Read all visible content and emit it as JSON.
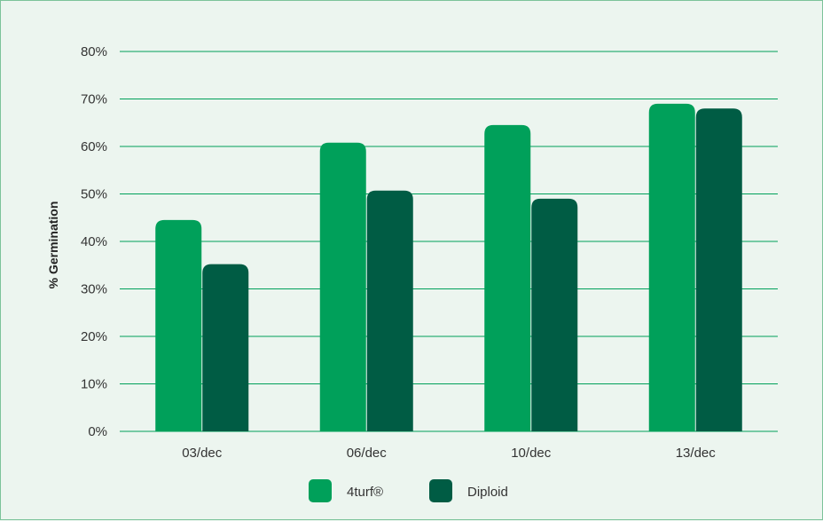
{
  "chart_data": {
    "type": "bar",
    "title": "",
    "xlabel": "",
    "ylabel": "% Germination",
    "ylim": [
      0,
      80
    ],
    "yticks": [
      "0%",
      "10%",
      "20%",
      "30%",
      "40%",
      "50%",
      "60%",
      "70%",
      "80%"
    ],
    "categories": [
      "03/dec",
      "06/dec",
      "10/dec",
      "13/dec"
    ],
    "series": [
      {
        "name": "4turf®",
        "color": "#00a05a",
        "values": [
          44.5,
          60.8,
          64.5,
          69.0
        ]
      },
      {
        "name": "Diploid",
        "color": "#005c44",
        "values": [
          35.2,
          50.7,
          49.0,
          68.0
        ]
      }
    ],
    "grid": true,
    "grid_color": "#00a05a",
    "legend_position": "bottom"
  }
}
